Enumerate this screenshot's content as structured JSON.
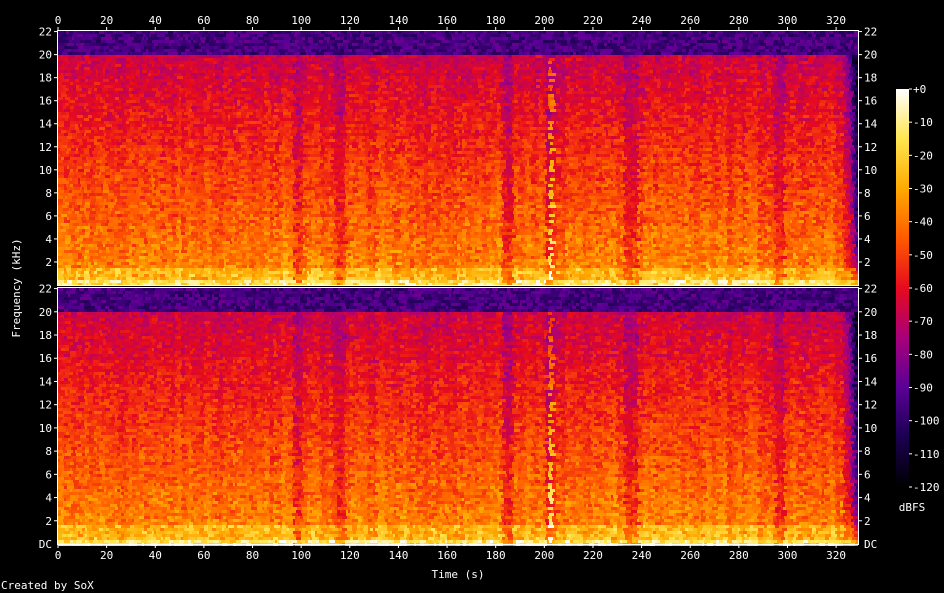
{
  "chart_data": {
    "type": "heatmap",
    "title": "",
    "xlabel": "Time (s)",
    "ylabel": "Frequency (kHz)",
    "xlim": [
      0,
      329
    ],
    "x_ticks": [
      "0",
      "20",
      "40",
      "60",
      "80",
      "100",
      "120",
      "140",
      "160",
      "180",
      "200",
      "220",
      "240",
      "260",
      "280",
      "300",
      "320"
    ],
    "x_tick_values": [
      0,
      20,
      40,
      60,
      80,
      100,
      120,
      140,
      160,
      180,
      200,
      220,
      240,
      260,
      280,
      300,
      320
    ],
    "ylim": [
      0,
      22.05
    ],
    "y_ticks": [
      "2",
      "4",
      "6",
      "8",
      "10",
      "12",
      "14",
      "16",
      "18",
      "20",
      "22"
    ],
    "y_tick_values": [
      2,
      4,
      6,
      8,
      10,
      12,
      14,
      16,
      18,
      20,
      22
    ],
    "y_bottom_label": "DC",
    "channels": 2,
    "colorbar": {
      "label": "dBFS",
      "ticks": [
        "+0",
        "-10",
        "-20",
        "-30",
        "-40",
        "-50",
        "-60",
        "-70",
        "-80",
        "-90",
        "-100",
        "-110",
        "-120"
      ],
      "tick_values": [
        0,
        -10,
        -20,
        -30,
        -40,
        -50,
        -60,
        -70,
        -80,
        -90,
        -100,
        -110,
        -120
      ],
      "range": [
        -120,
        0
      ]
    },
    "features": {
      "lowpass_cutoff_khz": 20,
      "transient_time_s": 202,
      "fade_out_start_s": 322,
      "quiet_regions_s": [
        [
          96,
          100
        ],
        [
          113,
          117
        ],
        [
          182,
          186
        ],
        [
          200,
          204
        ],
        [
          232,
          238
        ],
        [
          294,
          298
        ]
      ]
    },
    "colors": [
      "#000000",
      "#1a0050",
      "#5a0096",
      "#a8007a",
      "#e60a1e",
      "#ff5a00",
      "#ffaa00",
      "#ffe650",
      "#ffffff"
    ]
  },
  "footer": {
    "credit": "Created by SoX"
  }
}
